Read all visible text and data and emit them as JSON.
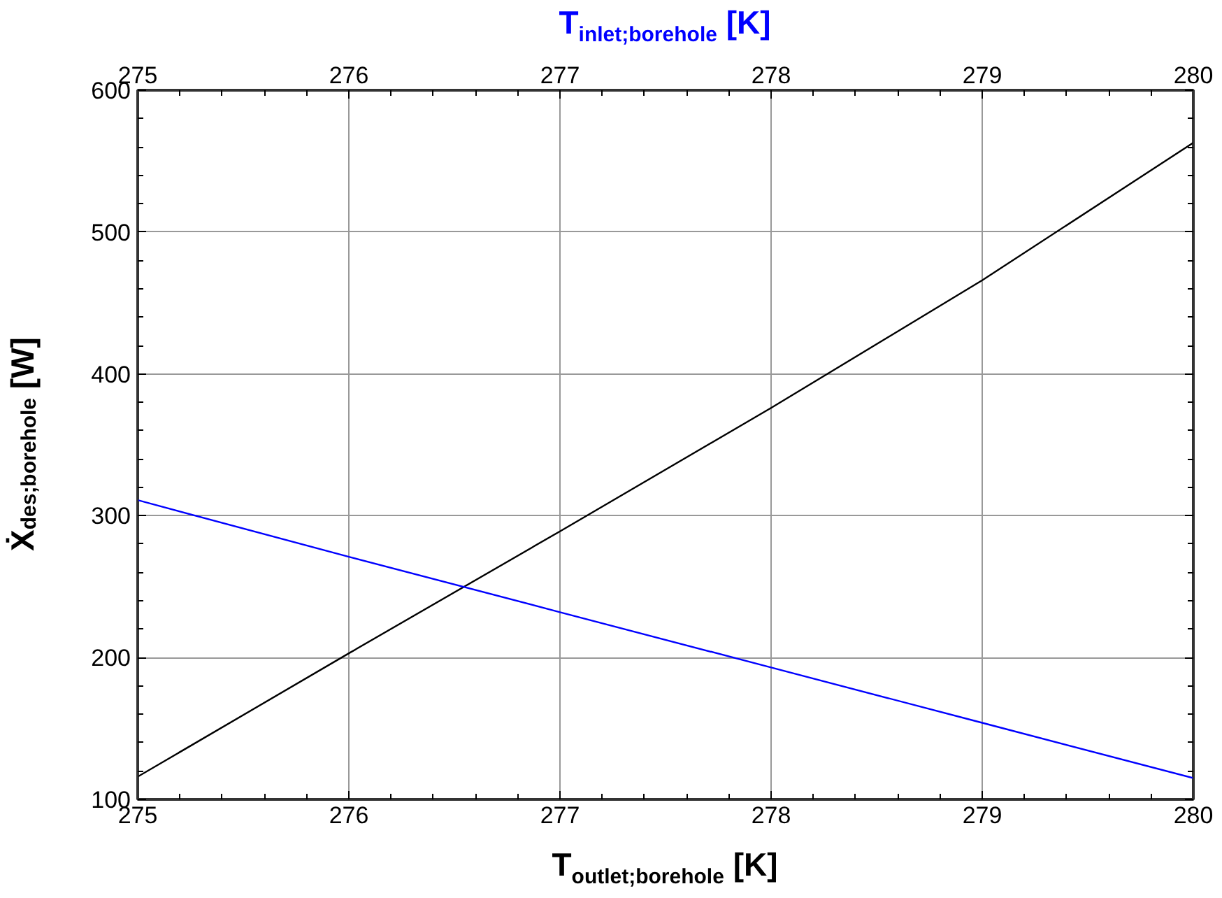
{
  "chart_data": {
    "type": "line",
    "xlabel": "T$_{outlet;borehole}$ [K]",
    "x2label": "T$_{inlet;borehole}$  [K]",
    "ylabel": "Ẋ$_{des;borehole}$  [W]",
    "xlim": [
      275,
      280
    ],
    "xticks": [
      275,
      276,
      277,
      278,
      279,
      280
    ],
    "x2lim": [
      275,
      280
    ],
    "x2ticks": [
      275,
      276,
      277,
      278,
      279,
      280
    ],
    "ylim": [
      100,
      600
    ],
    "yticks": [
      100,
      200,
      300,
      400,
      500,
      600
    ],
    "grid": true,
    "marker": "none",
    "line_style": "solid",
    "series": [
      {
        "color": "#000000",
        "x": [
          275,
          276,
          277,
          278,
          279,
          280
        ],
        "values": [
          116,
          203,
          289,
          376,
          466,
          563
        ]
      },
      {
        "color": "#0000ff",
        "axis": "x2",
        "x": [
          275,
          276,
          277,
          278,
          279,
          280
        ],
        "values": [
          311,
          271,
          232,
          193,
          154,
          115
        ]
      }
    ]
  }
}
